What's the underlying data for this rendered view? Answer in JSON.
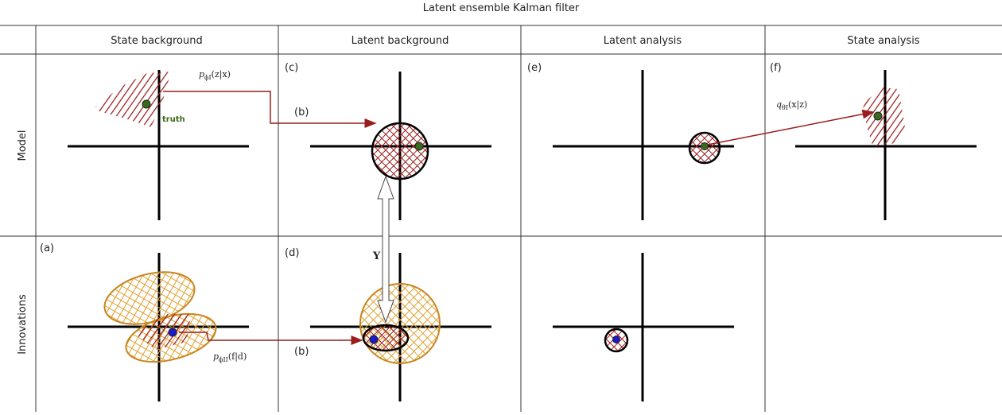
{
  "title": "Latent ensemble Kalman filter",
  "columns": [
    "State background",
    "Latent background",
    "Latent analysis",
    "State analysis"
  ],
  "rows": [
    "Model",
    "Innovations"
  ],
  "panels": [
    "(a)",
    "(b)",
    "(c)",
    "(d)",
    "(e)",
    "(f)"
  ],
  "annotations": {
    "encoder_state": {
      "main": "p",
      "sub": "ϕI",
      "rest": "(z|x)"
    },
    "truth": "truth",
    "step_b_model": "(b)",
    "step_b_innov": "(b)",
    "obs_operator": "Y",
    "decoder": {
      "main": "q",
      "sub": "θI",
      "rest": "(x|z)"
    },
    "encoder_innov": {
      "main": "p",
      "sub": "ϕII",
      "rest": "(f|d)"
    }
  }
}
